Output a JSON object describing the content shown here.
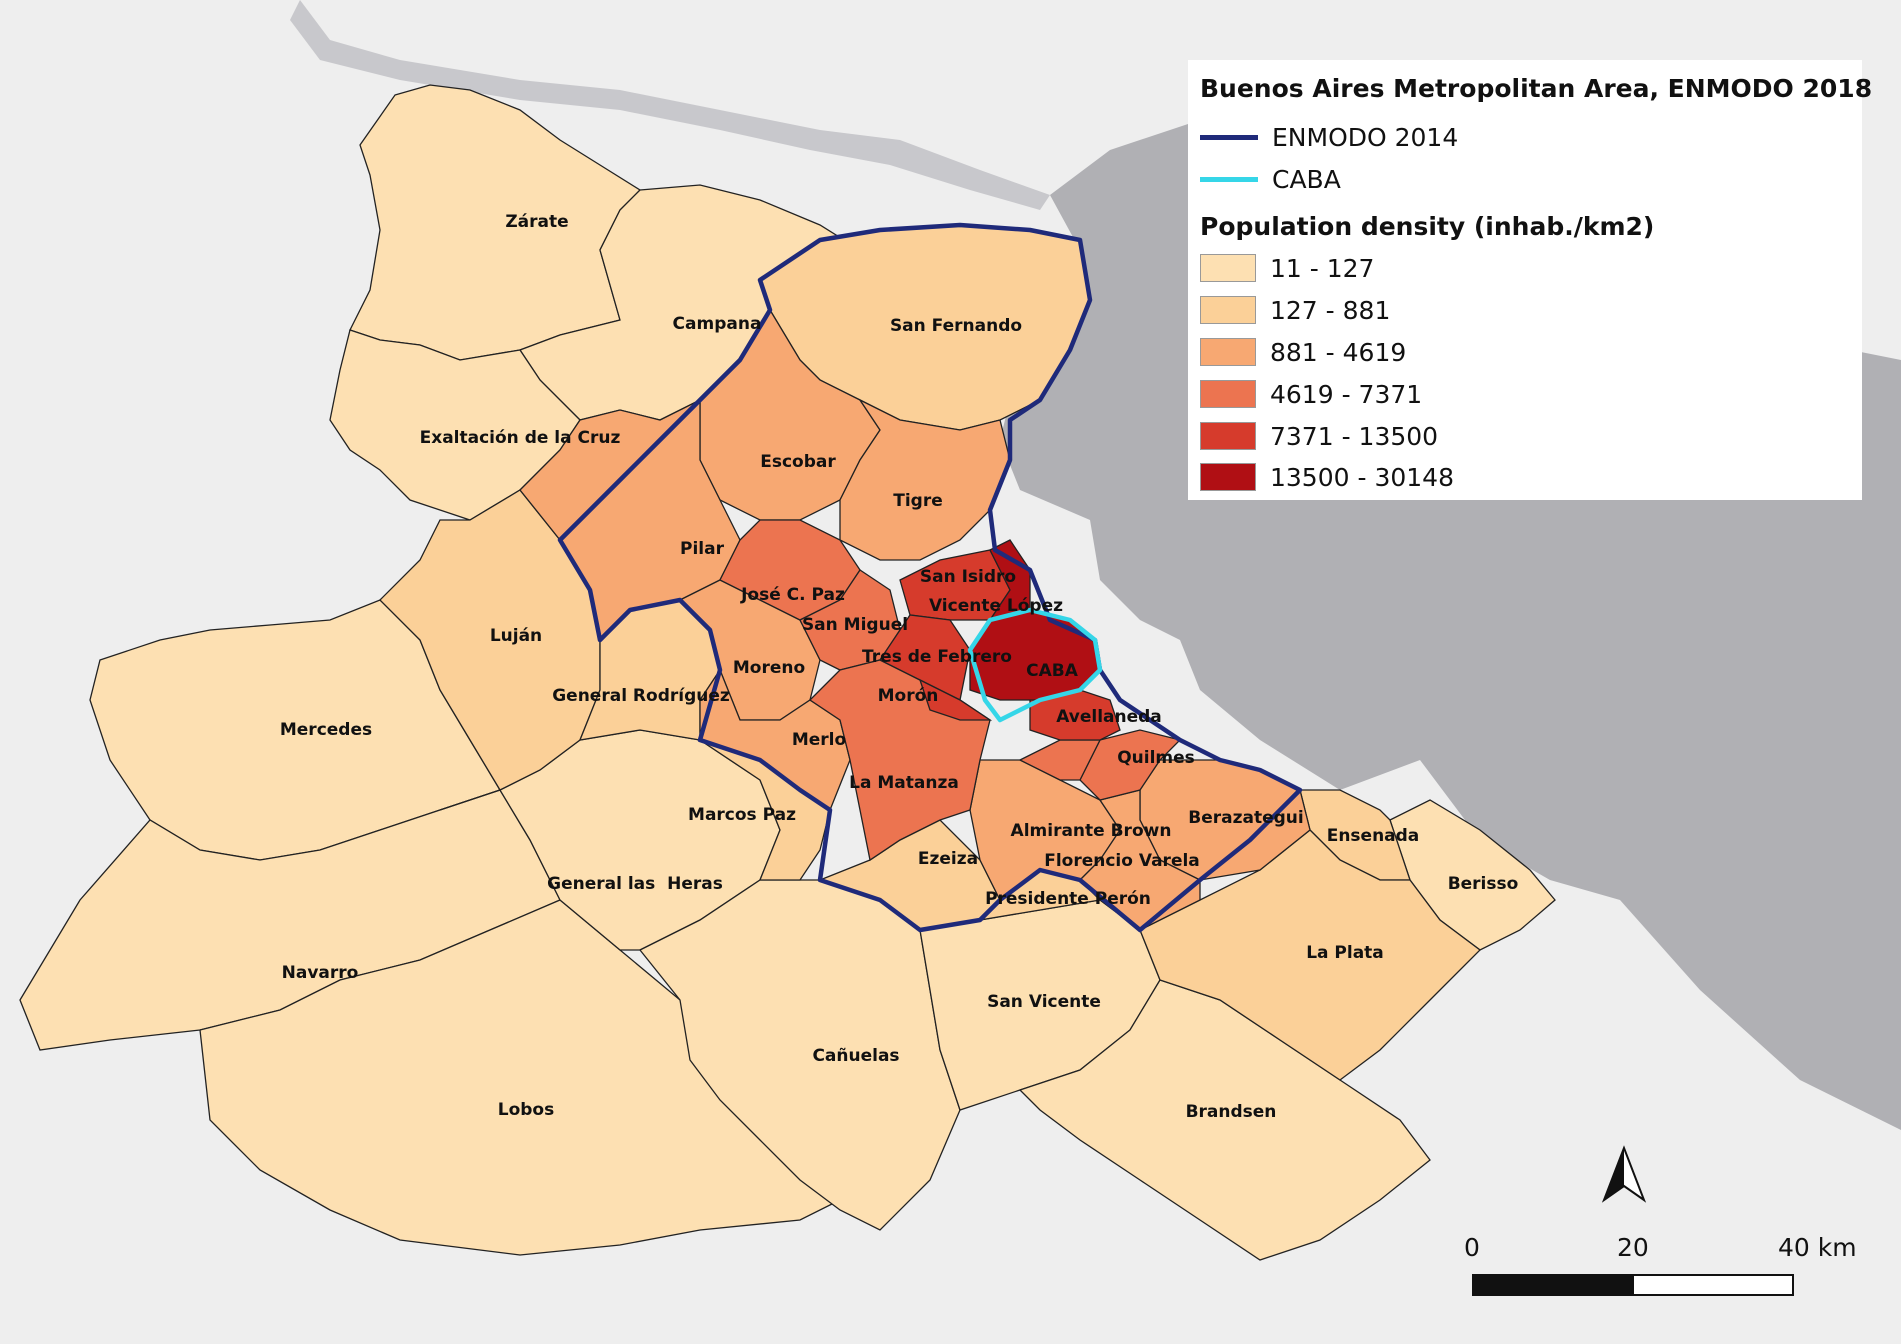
{
  "title": "Buenos Aires Metropolitan Area, ENMODO 2018",
  "legend": {
    "lines": [
      {
        "label": "ENMODO 2014",
        "color": "#1f2a7a"
      },
      {
        "label": "CABA",
        "color": "#35d6e8"
      }
    ],
    "density_title": "Population density (inhab./km2)",
    "classes": [
      {
        "label": "11 - 127",
        "color": "#fde0b2"
      },
      {
        "label": "127 - 881",
        "color": "#fbd098"
      },
      {
        "label": "881 - 4619",
        "color": "#f7a872"
      },
      {
        "label": "4619 - 7371",
        "color": "#ec7450"
      },
      {
        "label": "7371 - 13500",
        "color": "#d63b2c"
      },
      {
        "label": "13500 - 30148",
        "color": "#b00f14"
      }
    ]
  },
  "labels": {
    "zarate": "Zárate",
    "campana": "Campana",
    "san_fernando": "San Fernando",
    "exaltacion": "Exaltación de la Cruz",
    "escobar": "Escobar",
    "tigre": "Tigre",
    "pilar": "Pilar",
    "san_isidro": "San Isidro",
    "jose_c_paz": "José C. Paz",
    "vicente_lopez": "Vicente López",
    "lujan": "Luján",
    "san_miguel": "San Miguel",
    "tres_de_febrero": "Tres de Febrero",
    "caba": "CABA",
    "moreno": "Moreno",
    "general_rodriguez": "General Rodríguez",
    "moron": "Morón",
    "avellaneda": "Avellaneda",
    "mercedes": "Mercedes",
    "merlo": "Merlo",
    "quilmes": "Quilmes",
    "la_matanza": "La Matanza",
    "marcos_paz": "Marcos Paz",
    "berazategui": "Berazategui",
    "almirante_brown": "Almirante Brown",
    "ensenada": "Ensenada",
    "ezeiza": "Ezeiza",
    "florencio_varela": "Florencio Varela",
    "general_las_heras": "General las  Heras",
    "berisso": "Berisso",
    "presidente_peron": "Presidente Perón",
    "la_plata": "La Plata",
    "navarro": "Navarro",
    "san_vicente": "San Vicente",
    "canuelas": "Cañuelas",
    "lobos": "Lobos",
    "brandsen": "Brandsen"
  },
  "scale_bar": {
    "ticks": [
      "0",
      "20",
      "40 km"
    ]
  },
  "north_arrow": "north-arrow-icon"
}
